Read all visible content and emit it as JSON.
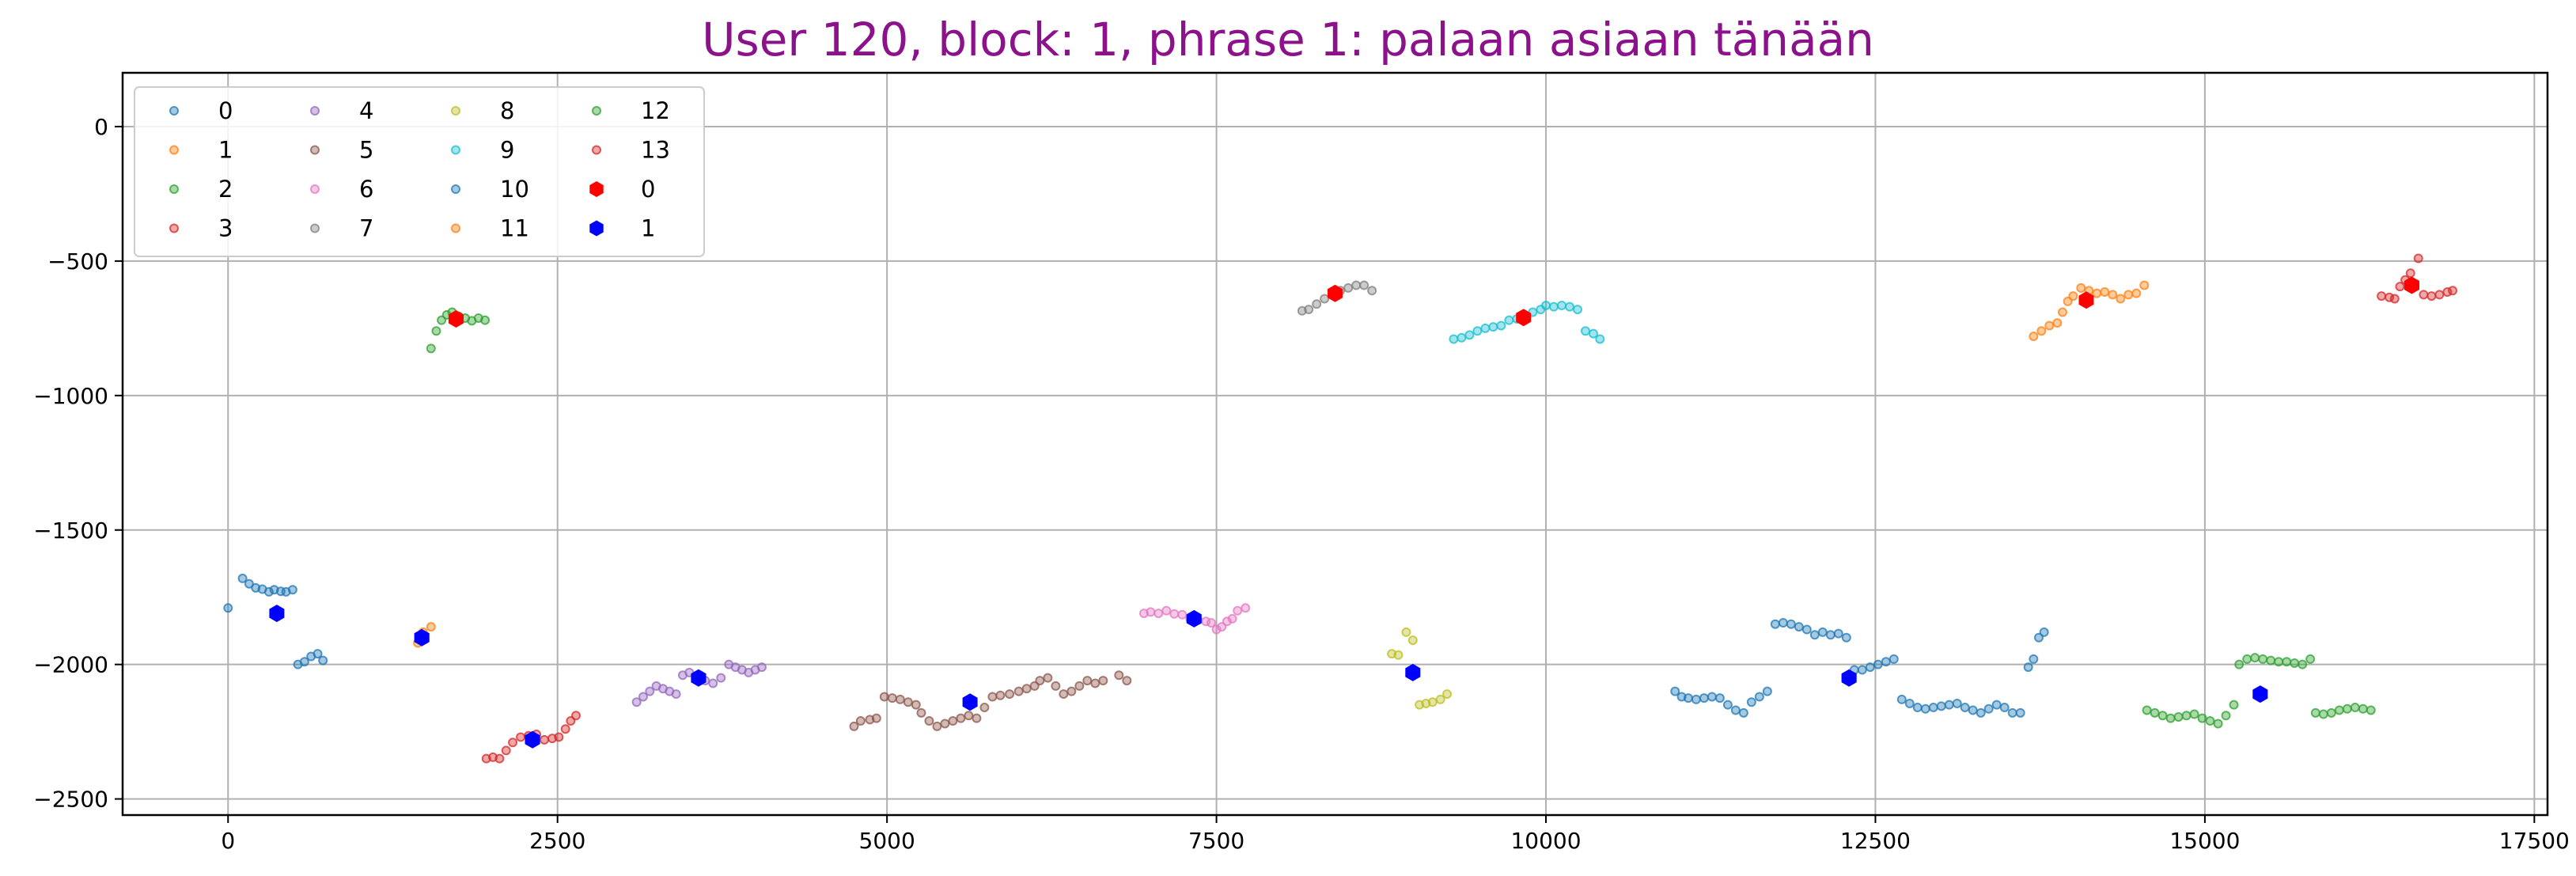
{
  "chart_data": {
    "type": "scatter",
    "title": "User 120, block: 1, phrase 1: palaan asiaan tänään",
    "xlabel": "",
    "ylabel": "",
    "xlim": [
      -800,
      17600
    ],
    "ylim": [
      -2560,
      200
    ],
    "xticks": [
      0,
      2500,
      5000,
      7500,
      10000,
      12500,
      15000,
      17500
    ],
    "xtick_labels": [
      "0",
      "2500",
      "5000",
      "7500",
      "10000",
      "12500",
      "15000",
      "17500"
    ],
    "yticks": [
      0,
      -500,
      -1000,
      -1500,
      -2000,
      -2500
    ],
    "ytick_labels": [
      "0",
      "−500",
      "−1000",
      "−1500",
      "−2000",
      "−2500"
    ],
    "grid": true,
    "legend_position": "top-left",
    "legend_columns": 4,
    "series": [
      {
        "name": "0",
        "color": "#1f77b4",
        "marker": "small-circle",
        "points": [
          [
            0,
            -1790
          ],
          [
            110,
            -1680
          ],
          [
            160,
            -1700
          ],
          [
            210,
            -1715
          ],
          [
            260,
            -1720
          ],
          [
            310,
            -1730
          ],
          [
            350,
            -1722
          ],
          [
            400,
            -1728
          ],
          [
            440,
            -1730
          ],
          [
            490,
            -1722
          ],
          [
            530,
            -2000
          ],
          [
            580,
            -1990
          ],
          [
            630,
            -1970
          ],
          [
            680,
            -1960
          ],
          [
            720,
            -1985
          ]
        ]
      },
      {
        "name": "1",
        "color": "#ff7f0e",
        "marker": "small-circle",
        "points": [
          [
            1440,
            -1920
          ],
          [
            1480,
            -1880
          ],
          [
            1540,
            -1860
          ]
        ]
      },
      {
        "name": "2",
        "color": "#2ca02c",
        "marker": "small-circle",
        "points": [
          [
            1540,
            -825
          ],
          [
            1580,
            -760
          ],
          [
            1620,
            -720
          ],
          [
            1660,
            -700
          ],
          [
            1700,
            -690
          ],
          [
            1750,
            -705
          ],
          [
            1800,
            -712
          ],
          [
            1850,
            -722
          ],
          [
            1900,
            -712
          ],
          [
            1950,
            -720
          ]
        ]
      },
      {
        "name": "3",
        "color": "#d62728",
        "marker": "small-circle",
        "points": [
          [
            1960,
            -2350
          ],
          [
            2010,
            -2345
          ],
          [
            2060,
            -2350
          ],
          [
            2110,
            -2320
          ],
          [
            2160,
            -2290
          ],
          [
            2220,
            -2270
          ],
          [
            2280,
            -2265
          ],
          [
            2340,
            -2260
          ],
          [
            2400,
            -2280
          ],
          [
            2460,
            -2275
          ],
          [
            2510,
            -2270
          ],
          [
            2560,
            -2240
          ],
          [
            2600,
            -2210
          ],
          [
            2640,
            -2190
          ]
        ]
      },
      {
        "name": "4",
        "color": "#9467bd",
        "marker": "small-circle",
        "points": [
          [
            3100,
            -2140
          ],
          [
            3150,
            -2120
          ],
          [
            3200,
            -2100
          ],
          [
            3250,
            -2080
          ],
          [
            3300,
            -2090
          ],
          [
            3350,
            -2100
          ],
          [
            3400,
            -2110
          ],
          [
            3450,
            -2040
          ],
          [
            3500,
            -2030
          ],
          [
            3560,
            -2040
          ],
          [
            3620,
            -2060
          ],
          [
            3680,
            -2070
          ],
          [
            3740,
            -2050
          ],
          [
            3800,
            -2000
          ],
          [
            3850,
            -2010
          ],
          [
            3900,
            -2020
          ],
          [
            3950,
            -2030
          ],
          [
            4000,
            -2020
          ],
          [
            4050,
            -2010
          ]
        ]
      },
      {
        "name": "5",
        "color": "#8c564b",
        "marker": "small-circle",
        "points": [
          [
            4750,
            -2230
          ],
          [
            4800,
            -2210
          ],
          [
            4870,
            -2205
          ],
          [
            4920,
            -2200
          ],
          [
            4980,
            -2120
          ],
          [
            5040,
            -2125
          ],
          [
            5100,
            -2130
          ],
          [
            5160,
            -2140
          ],
          [
            5220,
            -2150
          ],
          [
            5260,
            -2180
          ],
          [
            5320,
            -2210
          ],
          [
            5380,
            -2230
          ],
          [
            5440,
            -2220
          ],
          [
            5500,
            -2210
          ],
          [
            5560,
            -2200
          ],
          [
            5620,
            -2190
          ],
          [
            5680,
            -2200
          ],
          [
            5740,
            -2160
          ],
          [
            5800,
            -2120
          ],
          [
            5860,
            -2115
          ],
          [
            5930,
            -2110
          ],
          [
            6000,
            -2100
          ],
          [
            6060,
            -2090
          ],
          [
            6120,
            -2080
          ],
          [
            6160,
            -2060
          ],
          [
            6220,
            -2050
          ],
          [
            6280,
            -2080
          ],
          [
            6340,
            -2110
          ],
          [
            6400,
            -2100
          ],
          [
            6460,
            -2080
          ],
          [
            6520,
            -2060
          ],
          [
            6580,
            -2070
          ],
          [
            6640,
            -2060
          ],
          [
            6760,
            -2040
          ],
          [
            6820,
            -2060
          ]
        ]
      },
      {
        "name": "6",
        "color": "#e377c2",
        "marker": "small-circle",
        "points": [
          [
            6950,
            -1810
          ],
          [
            7000,
            -1805
          ],
          [
            7060,
            -1810
          ],
          [
            7120,
            -1800
          ],
          [
            7180,
            -1812
          ],
          [
            7240,
            -1815
          ],
          [
            7300,
            -1830
          ],
          [
            7360,
            -1835
          ],
          [
            7420,
            -1840
          ],
          [
            7460,
            -1845
          ],
          [
            7500,
            -1870
          ],
          [
            7540,
            -1860
          ],
          [
            7580,
            -1840
          ],
          [
            7620,
            -1830
          ],
          [
            7660,
            -1800
          ],
          [
            7720,
            -1790
          ]
        ]
      },
      {
        "name": "7",
        "color": "#7f7f7f",
        "marker": "small-circle",
        "points": [
          [
            8150,
            -685
          ],
          [
            8200,
            -680
          ],
          [
            8260,
            -660
          ],
          [
            8320,
            -640
          ],
          [
            8380,
            -625
          ],
          [
            8440,
            -610
          ],
          [
            8500,
            -600
          ],
          [
            8560,
            -590
          ],
          [
            8620,
            -590
          ],
          [
            8680,
            -610
          ]
        ]
      },
      {
        "name": "8",
        "color": "#bcbd22",
        "marker": "small-circle",
        "points": [
          [
            8830,
            -1960
          ],
          [
            8880,
            -1965
          ],
          [
            8940,
            -1880
          ],
          [
            8990,
            -1910
          ],
          [
            9040,
            -2150
          ],
          [
            9090,
            -2145
          ],
          [
            9140,
            -2140
          ],
          [
            9200,
            -2130
          ],
          [
            9250,
            -2110
          ]
        ]
      },
      {
        "name": "9",
        "color": "#17becf",
        "marker": "small-circle",
        "points": [
          [
            9300,
            -790
          ],
          [
            9360,
            -785
          ],
          [
            9420,
            -775
          ],
          [
            9480,
            -760
          ],
          [
            9540,
            -750
          ],
          [
            9600,
            -745
          ],
          [
            9660,
            -740
          ],
          [
            9720,
            -720
          ],
          [
            9780,
            -715
          ],
          [
            9840,
            -705
          ],
          [
            9900,
            -690
          ],
          [
            9960,
            -680
          ],
          [
            10000,
            -665
          ],
          [
            10060,
            -670
          ],
          [
            10120,
            -665
          ],
          [
            10180,
            -670
          ],
          [
            10240,
            -680
          ],
          [
            10300,
            -760
          ],
          [
            10360,
            -770
          ],
          [
            10410,
            -790
          ]
        ]
      },
      {
        "name": "10",
        "color": "#1f77b4",
        "marker": "small-circle",
        "points": [
          [
            10980,
            -2100
          ],
          [
            11030,
            -2120
          ],
          [
            11080,
            -2125
          ],
          [
            11140,
            -2130
          ],
          [
            11200,
            -2125
          ],
          [
            11260,
            -2120
          ],
          [
            11320,
            -2125
          ],
          [
            11380,
            -2150
          ],
          [
            11440,
            -2170
          ],
          [
            11500,
            -2180
          ],
          [
            11560,
            -2140
          ],
          [
            11620,
            -2120
          ],
          [
            11680,
            -2100
          ],
          [
            11740,
            -1850
          ],
          [
            11800,
            -1845
          ],
          [
            11860,
            -1850
          ],
          [
            11920,
            -1860
          ],
          [
            11980,
            -1870
          ],
          [
            12040,
            -1890
          ],
          [
            12100,
            -1880
          ],
          [
            12160,
            -1890
          ],
          [
            12220,
            -1885
          ],
          [
            12280,
            -1900
          ],
          [
            12340,
            -2020
          ],
          [
            12400,
            -2020
          ],
          [
            12460,
            -2010
          ],
          [
            12520,
            -2000
          ],
          [
            12580,
            -1990
          ],
          [
            12640,
            -1980
          ],
          [
            12700,
            -2130
          ],
          [
            12760,
            -2145
          ],
          [
            12820,
            -2160
          ],
          [
            12880,
            -2165
          ],
          [
            12940,
            -2160
          ],
          [
            13000,
            -2155
          ],
          [
            13060,
            -2150
          ],
          [
            13120,
            -2145
          ],
          [
            13180,
            -2160
          ],
          [
            13240,
            -2170
          ],
          [
            13300,
            -2180
          ],
          [
            13360,
            -2165
          ],
          [
            13420,
            -2150
          ],
          [
            13480,
            -2160
          ],
          [
            13540,
            -2180
          ],
          [
            13600,
            -2180
          ],
          [
            13660,
            -2010
          ],
          [
            13700,
            -1980
          ],
          [
            13740,
            -1900
          ],
          [
            13780,
            -1880
          ]
        ]
      },
      {
        "name": "11",
        "color": "#ff7f0e",
        "marker": "small-circle",
        "points": [
          [
            13700,
            -780
          ],
          [
            13760,
            -760
          ],
          [
            13820,
            -740
          ],
          [
            13880,
            -730
          ],
          [
            13920,
            -690
          ],
          [
            13960,
            -650
          ],
          [
            14000,
            -630
          ],
          [
            14060,
            -600
          ],
          [
            14120,
            -610
          ],
          [
            14180,
            -620
          ],
          [
            14240,
            -615
          ],
          [
            14300,
            -625
          ],
          [
            14360,
            -640
          ],
          [
            14420,
            -625
          ],
          [
            14480,
            -620
          ],
          [
            14540,
            -590
          ]
        ]
      },
      {
        "name": "12",
        "color": "#2ca02c",
        "marker": "small-circle",
        "points": [
          [
            14560,
            -2170
          ],
          [
            14620,
            -2180
          ],
          [
            14680,
            -2190
          ],
          [
            14740,
            -2200
          ],
          [
            14800,
            -2195
          ],
          [
            14860,
            -2190
          ],
          [
            14920,
            -2185
          ],
          [
            14980,
            -2200
          ],
          [
            15040,
            -2210
          ],
          [
            15100,
            -2220
          ],
          [
            15160,
            -2190
          ],
          [
            15220,
            -2150
          ],
          [
            15260,
            -2000
          ],
          [
            15320,
            -1980
          ],
          [
            15380,
            -1975
          ],
          [
            15440,
            -1980
          ],
          [
            15500,
            -1985
          ],
          [
            15560,
            -1990
          ],
          [
            15620,
            -1990
          ],
          [
            15680,
            -1995
          ],
          [
            15740,
            -2000
          ],
          [
            15800,
            -1980
          ],
          [
            15840,
            -2180
          ],
          [
            15900,
            -2185
          ],
          [
            15960,
            -2180
          ],
          [
            16020,
            -2170
          ],
          [
            16080,
            -2165
          ],
          [
            16140,
            -2160
          ],
          [
            16200,
            -2165
          ],
          [
            16260,
            -2170
          ]
        ]
      },
      {
        "name": "13",
        "color": "#d62728",
        "marker": "small-circle",
        "points": [
          [
            16340,
            -630
          ],
          [
            16400,
            -635
          ],
          [
            16440,
            -640
          ],
          [
            16480,
            -595
          ],
          [
            16520,
            -570
          ],
          [
            16560,
            -545
          ],
          [
            16620,
            -490
          ],
          [
            16660,
            -625
          ],
          [
            16720,
            -630
          ],
          [
            16780,
            -625
          ],
          [
            16840,
            -615
          ],
          [
            16880,
            -610
          ]
        ]
      },
      {
        "name": "0",
        "color": "#ff0000",
        "marker": "large-hexagon",
        "points": [
          [
            1730,
            -715
          ],
          [
            8400,
            -620
          ],
          [
            9830,
            -710
          ],
          [
            14100,
            -645
          ],
          [
            16570,
            -590
          ]
        ]
      },
      {
        "name": "1",
        "color": "#0000ff",
        "marker": "large-hexagon",
        "points": [
          [
            370,
            -1810
          ],
          [
            1470,
            -1900
          ],
          [
            2310,
            -2280
          ],
          [
            3570,
            -2050
          ],
          [
            5630,
            -2140
          ],
          [
            7330,
            -1830
          ],
          [
            8990,
            -2030
          ],
          [
            12300,
            -2050
          ],
          [
            15420,
            -2110
          ]
        ]
      }
    ]
  }
}
